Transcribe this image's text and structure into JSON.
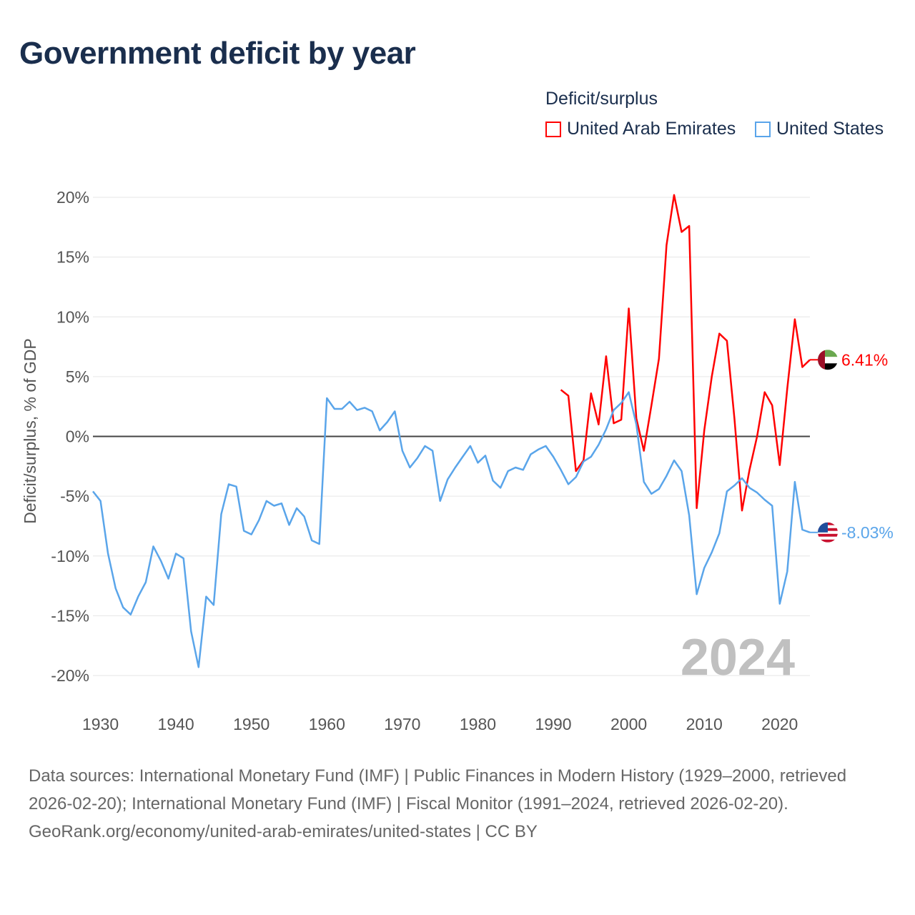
{
  "title": "Government deficit by year",
  "legend": {
    "title": "Deficit/surplus",
    "items": [
      {
        "name": "United Arab Emirates",
        "color": "#ff0000"
      },
      {
        "name": "United States",
        "color": "#5aa5ea"
      }
    ]
  },
  "year_watermark": "2024",
  "footer": {
    "sources": "Data sources: International Monetary Fund (IMF) | Public Finances in Modern History (1929–2000, retrieved 2026-02-20); International Monetary Fund (IMF) | Fiscal Monitor (1991–2024, retrieved 2026-02-20).",
    "credit": "GeoRank.org/economy/united-arab-emirates/united-states | CC BY"
  },
  "chart_data": {
    "type": "line",
    "title": "Government deficit by year",
    "xlabel": "",
    "ylabel": "Deficit/surplus, % of GDP",
    "xlim": [
      1929,
      2024
    ],
    "ylim": [
      -20,
      20
    ],
    "x_ticks": [
      "1930",
      "1940",
      "1950",
      "1960",
      "1970",
      "1980",
      "1990",
      "2000",
      "2010",
      "2020"
    ],
    "y_ticks": [
      "20%",
      "15%",
      "10%",
      "5%",
      "0%",
      "-5%",
      "-10%",
      "-15%",
      "-20%"
    ],
    "legend_position": "top-right",
    "series": [
      {
        "name": "United Arab Emirates",
        "color": "#ff0000",
        "start_year": 1991,
        "end_label": "6.41%",
        "values": [
          3.9,
          3.4,
          -2.9,
          -2.0,
          3.6,
          1.0,
          6.7,
          1.1,
          1.4,
          10.7,
          1.5,
          -1.2,
          2.6,
          6.5,
          16.0,
          20.2,
          17.1,
          17.6,
          -6.0,
          0.5,
          5.0,
          8.6,
          8.0,
          1.5,
          -6.2,
          -2.8,
          0.0,
          3.7,
          2.6,
          -2.4,
          4.0,
          9.8,
          5.8,
          6.41
        ]
      },
      {
        "name": "United States",
        "color": "#5aa5ea",
        "start_year": 1929,
        "end_label": "-8.03%",
        "values": [
          -4.6,
          -5.4,
          -9.8,
          -12.7,
          -14.3,
          -14.9,
          -13.4,
          -12.2,
          -9.2,
          -10.4,
          -11.9,
          -9.8,
          -10.2,
          -16.3,
          -19.3,
          -13.4,
          -14.1,
          -6.5,
          -4.0,
          -4.2,
          -7.9,
          -8.2,
          -7.0,
          -5.4,
          -5.8,
          -5.6,
          -7.4,
          -6.0,
          -6.7,
          -8.7,
          -9.0,
          3.2,
          2.3,
          2.3,
          2.9,
          2.2,
          2.4,
          2.1,
          0.5,
          1.2,
          2.1,
          -1.2,
          -2.6,
          -1.8,
          -0.8,
          -1.2,
          -5.4,
          -3.6,
          -2.6,
          -1.7,
          -0.8,
          -2.2,
          -1.6,
          -3.7,
          -4.3,
          -2.9,
          -2.6,
          -2.8,
          -1.5,
          -1.1,
          -0.8,
          -1.7,
          -2.8,
          -4.0,
          -3.4,
          -2.1,
          -1.7,
          -0.7,
          0.6,
          2.2,
          2.8,
          3.7,
          1.0,
          -3.8,
          -4.8,
          -4.4,
          -3.3,
          -2.0,
          -2.9,
          -6.6,
          -13.2,
          -11.0,
          -9.7,
          -8.1,
          -4.6,
          -4.1,
          -3.5,
          -4.3,
          -4.7,
          -5.3,
          -5.8,
          -14.0,
          -11.3,
          -3.8,
          -7.8,
          -8.03
        ]
      }
    ]
  }
}
